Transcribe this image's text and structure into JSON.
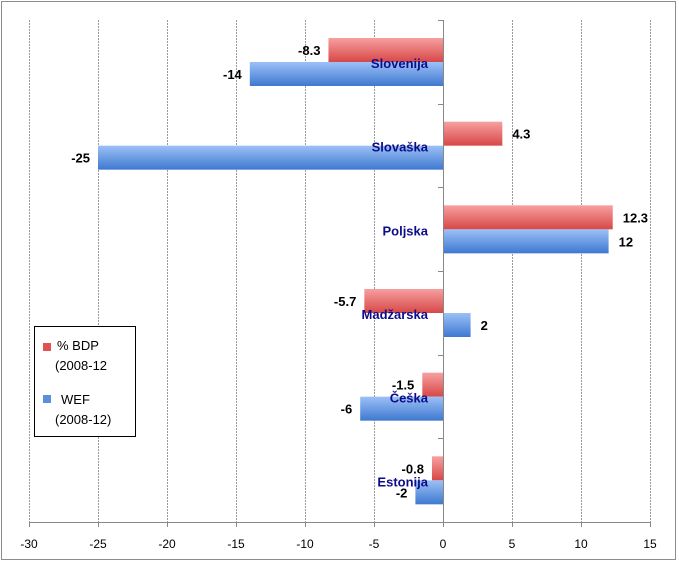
{
  "chart_data": {
    "type": "bar",
    "orientation": "horizontal",
    "title": "",
    "xlabel": "",
    "ylabel": "",
    "xlim": [
      -30,
      15
    ],
    "x_ticks": [
      -30,
      -25,
      -20,
      -15,
      -10,
      -5,
      0,
      5,
      10,
      15
    ],
    "x_tick_labels": [
      "-30",
      "-25",
      "-20",
      "-15",
      "-10",
      "-5",
      "0",
      "5",
      "10",
      "15"
    ],
    "grid": "vertical dotted",
    "categories": [
      "Slovenija",
      "Slovaška",
      "Poljska",
      "Madžarska",
      "Češka",
      "Estonija"
    ],
    "series": [
      {
        "name": "% BDP (2008-12",
        "legend_lines": [
          "% BDP",
          "(2008-12"
        ],
        "color": "#e05252",
        "values": [
          -8.3,
          4.3,
          12.3,
          -5.7,
          -1.5,
          -0.8
        ],
        "labels": [
          "-8.3",
          "4.3",
          "12.3",
          "-5.7",
          "-1.5",
          "-0.8"
        ]
      },
      {
        "name": "WEF (2008-12)",
        "legend_lines": [
          "WEF",
          "(2008-12)"
        ],
        "color": "#5a8fdc",
        "values": [
          -14,
          -25,
          12,
          2,
          -6,
          -2
        ],
        "labels": [
          "-14",
          "-25",
          "12",
          "2",
          "-6",
          "-2"
        ]
      }
    ],
    "legend": "left-lower"
  }
}
